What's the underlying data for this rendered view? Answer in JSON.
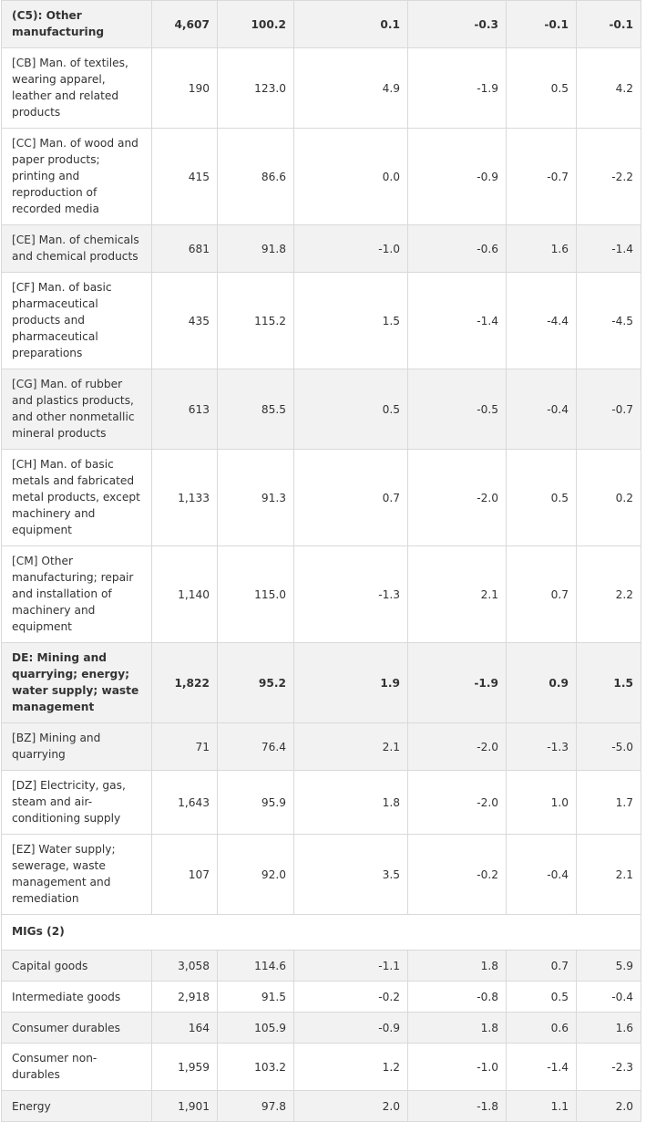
{
  "table": {
    "rows": [
      {
        "label": "(C5): Other manufacturing",
        "values": [
          "4,607",
          "100.2",
          "0.1",
          "-0.3",
          "-0.1",
          "-0.1"
        ]
      },
      {
        "label": "[CB] Man. of textiles, wearing apparel, leather and related products",
        "values": [
          "190",
          "123.0",
          "4.9",
          "-1.9",
          "0.5",
          "4.2"
        ]
      },
      {
        "label": "[CC] Man. of wood and paper products; printing and reproduction of recorded media",
        "values": [
          "415",
          "86.6",
          "0.0",
          "-0.9",
          "-0.7",
          "-2.2"
        ]
      },
      {
        "label": "[CE] Man. of chemicals and chemical products",
        "values": [
          "681",
          "91.8",
          "-1.0",
          "-0.6",
          "1.6",
          "-1.4"
        ]
      },
      {
        "label": "[CF] Man. of basic pharmaceutical products and pharmaceutical preparations",
        "values": [
          "435",
          "115.2",
          "1.5",
          "-1.4",
          "-4.4",
          "-4.5"
        ]
      },
      {
        "label": "[CG] Man. of rubber and plastics products, and other nonmetallic mineral products",
        "values": [
          "613",
          "85.5",
          "0.5",
          "-0.5",
          "-0.4",
          "-0.7"
        ]
      },
      {
        "label": "[CH] Man. of basic metals and fabricated metal products, except machinery and equipment",
        "values": [
          "1,133",
          "91.3",
          "0.7",
          "-2.0",
          "0.5",
          "0.2"
        ]
      },
      {
        "label": "[CM] Other manufacturing; repair and installation of machinery and equipment",
        "values": [
          "1,140",
          "115.0",
          "-1.3",
          "2.1",
          "0.7",
          "2.2"
        ]
      },
      {
        "label": "DE: Mining and quarrying; energy; water supply; waste management",
        "values": [
          "1,822",
          "95.2",
          "1.9",
          "-1.9",
          "0.9",
          "1.5"
        ]
      },
      {
        "label": "[BZ] Mining and quarrying",
        "values": [
          "71",
          "76.4",
          "2.1",
          "-2.0",
          "-1.3",
          "-5.0"
        ]
      },
      {
        "label": "[DZ] Electricity, gas, steam and air-conditioning supply",
        "values": [
          "1,643",
          "95.9",
          "1.8",
          "-2.0",
          "1.0",
          "1.7"
        ]
      },
      {
        "label": "[EZ] Water supply; sewerage, waste management and remediation",
        "values": [
          "107",
          "92.0",
          "3.5",
          "-0.2",
          "-0.4",
          "2.1"
        ]
      },
      {
        "label": "MIGs (2)",
        "values": []
      },
      {
        "label": "Capital goods",
        "values": [
          "3,058",
          "114.6",
          "-1.1",
          "1.8",
          "0.7",
          "5.9"
        ]
      },
      {
        "label": "Intermediate goods",
        "values": [
          "2,918",
          "91.5",
          "-0.2",
          "-0.8",
          "0.5",
          "-0.4"
        ]
      },
      {
        "label": "Consumer durables",
        "values": [
          "164",
          "105.9",
          "-0.9",
          "1.8",
          "0.6",
          "1.6"
        ]
      },
      {
        "label": "Consumer non-durables",
        "values": [
          "1,959",
          "103.2",
          "1.2",
          "-1.0",
          "-1.4",
          "-2.3"
        ]
      },
      {
        "label": "Energy",
        "values": [
          "1,901",
          "97.8",
          "2.0",
          "-1.8",
          "1.1",
          "2.0"
        ]
      }
    ]
  }
}
